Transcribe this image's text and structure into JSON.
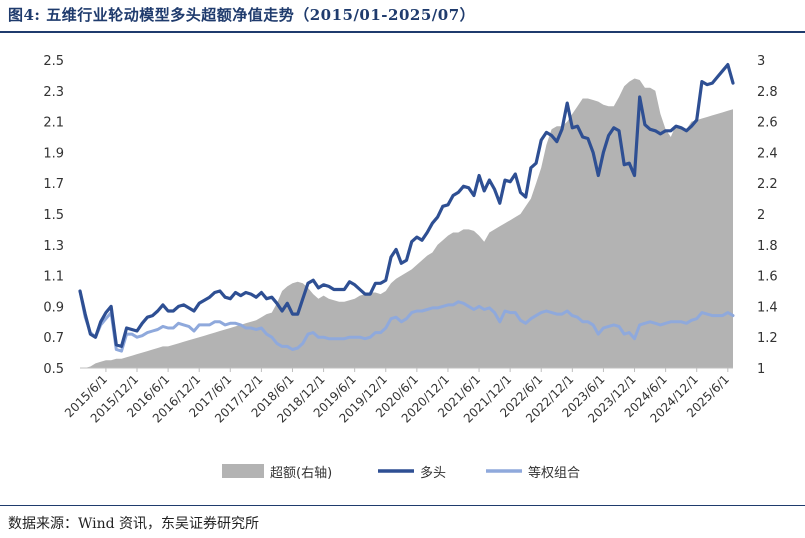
{
  "title": "图4:  五维行业轮动模型多头超额净值走势（2015/01-2025/07）",
  "source": "数据来源：Wind 资讯，东吴证券研究所",
  "chart_data": {
    "type": "line",
    "x_tick_labels": [
      "2015/6/1",
      "2015/12/1",
      "2016/6/1",
      "2016/12/1",
      "2017/6/1",
      "2017/12/1",
      "2018/6/1",
      "2018/12/1",
      "2019/6/1",
      "2019/12/1",
      "2020/6/1",
      "2020/12/1",
      "2021/6/1",
      "2021/12/1",
      "2022/6/1",
      "2022/12/1",
      "2023/6/1",
      "2023/12/1",
      "2024/6/1",
      "2024/12/1",
      "2025/6/1"
    ],
    "y_left": {
      "ylim": [
        0.5,
        2.5
      ],
      "ticks": [
        "0.5",
        "0.7",
        "0.9",
        "1.1",
        "1.3",
        "1.5",
        "1.7",
        "1.9",
        "2.1",
        "2.3",
        "2.5"
      ]
    },
    "y_right": {
      "ylim": [
        1,
        3
      ],
      "ticks": [
        "1",
        "1.2",
        "1.4",
        "1.6",
        "1.8",
        "2",
        "2.2",
        "2.4",
        "2.6",
        "2.8",
        "3"
      ]
    },
    "months": [
      0,
      1,
      2,
      3,
      4,
      5,
      6,
      7,
      8,
      9,
      10,
      11,
      12,
      13,
      14,
      15,
      16,
      17,
      18,
      19,
      20,
      21,
      22,
      23,
      24,
      25,
      26,
      27,
      28,
      29,
      30,
      31,
      32,
      33,
      34,
      35,
      36,
      37,
      38,
      39,
      40,
      41,
      42,
      43,
      44,
      45,
      46,
      47,
      48,
      49,
      50,
      51,
      52,
      53,
      54,
      55,
      56,
      57,
      58,
      59,
      60,
      61,
      62,
      63,
      64,
      65,
      66,
      67,
      68,
      69,
      70,
      71,
      72,
      73,
      74,
      75,
      76,
      77,
      78,
      79,
      80,
      81,
      82,
      83,
      84,
      85,
      86,
      87,
      88,
      89,
      90,
      91,
      92,
      93,
      94,
      95,
      96,
      97,
      98,
      99,
      100,
      101,
      102,
      103,
      104,
      105,
      106,
      107,
      108,
      109,
      110,
      111,
      112,
      113,
      114,
      115,
      116,
      117,
      118,
      119,
      120,
      121,
      122,
      123,
      124,
      125,
      126
    ],
    "series": [
      {
        "name": "超额(右轴)",
        "axis": "right",
        "color": "#b3b3b3",
        "values": [
          1.0,
          1.0,
          1.01,
          1.03,
          1.04,
          1.05,
          1.05,
          1.06,
          1.06,
          1.07,
          1.08,
          1.09,
          1.1,
          1.11,
          1.12,
          1.13,
          1.14,
          1.14,
          1.15,
          1.16,
          1.17,
          1.18,
          1.19,
          1.2,
          1.21,
          1.22,
          1.23,
          1.24,
          1.25,
          1.26,
          1.27,
          1.28,
          1.29,
          1.3,
          1.31,
          1.33,
          1.35,
          1.36,
          1.42,
          1.5,
          1.53,
          1.55,
          1.56,
          1.55,
          1.52,
          1.48,
          1.45,
          1.47,
          1.45,
          1.44,
          1.43,
          1.43,
          1.44,
          1.45,
          1.47,
          1.48,
          1.49,
          1.49,
          1.48,
          1.5,
          1.55,
          1.58,
          1.6,
          1.62,
          1.64,
          1.67,
          1.7,
          1.73,
          1.75,
          1.8,
          1.83,
          1.86,
          1.88,
          1.88,
          1.9,
          1.9,
          1.89,
          1.86,
          1.82,
          1.88,
          1.9,
          1.92,
          1.94,
          1.96,
          1.98,
          2.0,
          2.05,
          2.1,
          2.2,
          2.3,
          2.45,
          2.55,
          2.57,
          2.57,
          2.6,
          2.65,
          2.7,
          2.75,
          2.75,
          2.74,
          2.73,
          2.71,
          2.7,
          2.7,
          2.76,
          2.83,
          2.86,
          2.88,
          2.87,
          2.82,
          2.82,
          2.8,
          2.65,
          2.55,
          2.5,
          2.58,
          2.57,
          2.55,
          2.6,
          2.61,
          2.62,
          2.63,
          2.64,
          2.65,
          2.66,
          2.67,
          2.68
        ]
      },
      {
        "name": "多头",
        "axis": "left",
        "color": "#2e4f93",
        "values": [
          1.0,
          0.85,
          0.72,
          0.7,
          0.8,
          0.86,
          0.9,
          0.65,
          0.64,
          0.76,
          0.75,
          0.74,
          0.79,
          0.83,
          0.84,
          0.87,
          0.91,
          0.87,
          0.87,
          0.9,
          0.91,
          0.89,
          0.87,
          0.92,
          0.94,
          0.96,
          0.99,
          1.0,
          0.96,
          0.95,
          0.99,
          0.97,
          0.99,
          0.98,
          0.96,
          0.99,
          0.95,
          0.96,
          0.92,
          0.87,
          0.92,
          0.85,
          0.85,
          0.95,
          1.05,
          1.07,
          1.02,
          1.04,
          1.03,
          1.01,
          1.01,
          1.01,
          1.06,
          1.04,
          1.01,
          0.98,
          0.98,
          1.05,
          1.05,
          1.07,
          1.22,
          1.27,
          1.18,
          1.2,
          1.32,
          1.35,
          1.33,
          1.38,
          1.44,
          1.48,
          1.55,
          1.56,
          1.62,
          1.64,
          1.68,
          1.67,
          1.62,
          1.75,
          1.65,
          1.72,
          1.66,
          1.57,
          1.72,
          1.71,
          1.76,
          1.64,
          1.61,
          1.8,
          1.83,
          1.98,
          2.03,
          2.01,
          1.97,
          2.05,
          2.22,
          2.06,
          2.07,
          2.0,
          1.99,
          1.9,
          1.75,
          1.9,
          2.01,
          2.06,
          2.04,
          1.82,
          1.83,
          1.75,
          2.26,
          2.08,
          2.05,
          2.04,
          2.02,
          2.04,
          2.04,
          2.07,
          2.06,
          2.04,
          2.07,
          2.11,
          2.36,
          2.34,
          2.35,
          2.39,
          2.43,
          2.47,
          2.35
        ]
      },
      {
        "name": "等权组合",
        "axis": "left",
        "color": "#8fa9dc",
        "values": [
          1.0,
          0.83,
          0.73,
          0.7,
          0.78,
          0.82,
          0.86,
          0.62,
          0.61,
          0.72,
          0.72,
          0.7,
          0.71,
          0.73,
          0.74,
          0.75,
          0.77,
          0.76,
          0.76,
          0.79,
          0.78,
          0.77,
          0.74,
          0.78,
          0.78,
          0.78,
          0.8,
          0.8,
          0.78,
          0.79,
          0.79,
          0.78,
          0.76,
          0.76,
          0.75,
          0.76,
          0.72,
          0.7,
          0.66,
          0.64,
          0.64,
          0.62,
          0.63,
          0.66,
          0.72,
          0.73,
          0.7,
          0.7,
          0.69,
          0.69,
          0.69,
          0.69,
          0.7,
          0.7,
          0.7,
          0.69,
          0.7,
          0.73,
          0.73,
          0.76,
          0.82,
          0.83,
          0.8,
          0.82,
          0.86,
          0.87,
          0.87,
          0.88,
          0.89,
          0.89,
          0.9,
          0.91,
          0.91,
          0.93,
          0.92,
          0.9,
          0.88,
          0.9,
          0.88,
          0.89,
          0.86,
          0.8,
          0.87,
          0.86,
          0.86,
          0.81,
          0.79,
          0.82,
          0.84,
          0.86,
          0.87,
          0.86,
          0.85,
          0.85,
          0.87,
          0.84,
          0.83,
          0.8,
          0.8,
          0.78,
          0.72,
          0.76,
          0.77,
          0.78,
          0.77,
          0.72,
          0.73,
          0.69,
          0.78,
          0.79,
          0.8,
          0.79,
          0.78,
          0.79,
          0.8,
          0.8,
          0.8,
          0.79,
          0.81,
          0.82,
          0.86,
          0.85,
          0.84,
          0.84,
          0.84,
          0.86,
          0.84
        ]
      }
    ],
    "legend_placement": "bottom-center",
    "grid": false
  }
}
